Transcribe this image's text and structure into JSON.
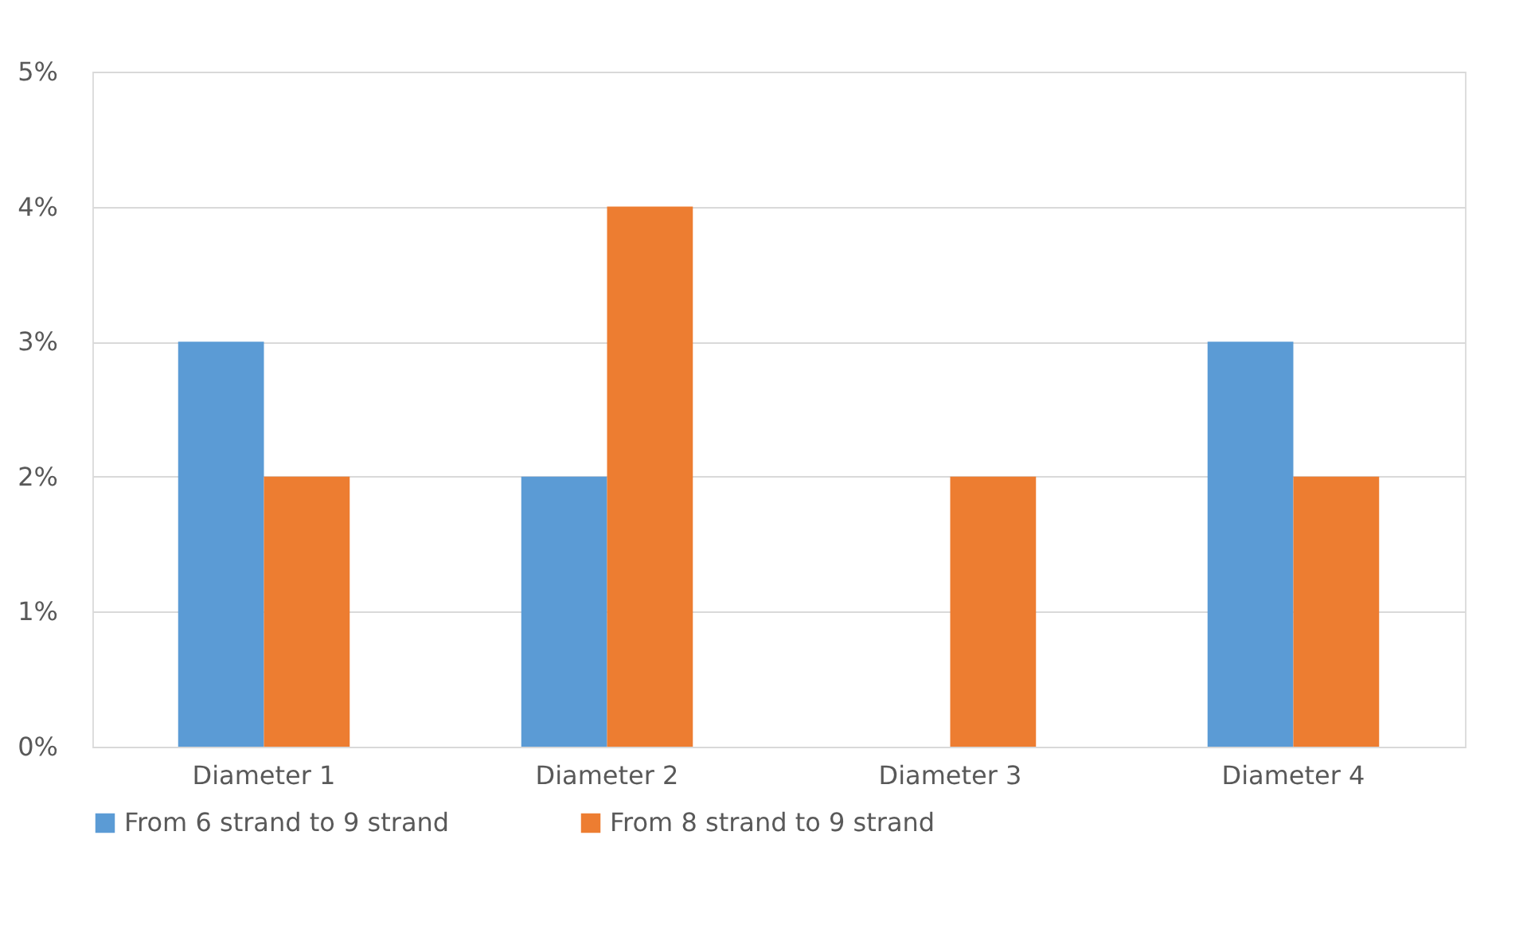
{
  "chart_data": {
    "type": "bar",
    "categories": [
      "Diameter 1",
      "Diameter 2",
      "Diameter 3",
      "Diameter 4"
    ],
    "series": [
      {
        "name": "From 6 strand to 9 strand",
        "color": "#5b9bd5",
        "values": [
          3,
          2,
          0,
          3
        ]
      },
      {
        "name": "From 8 strand to 9 strand",
        "color": "#ed7d31",
        "values": [
          2,
          4,
          2,
          2
        ]
      }
    ],
    "ylim": [
      0,
      5
    ],
    "yticks": [
      {
        "value": 0,
        "label": "0%"
      },
      {
        "value": 1,
        "label": "1%"
      },
      {
        "value": 2,
        "label": "2%"
      },
      {
        "value": 3,
        "label": "3%"
      },
      {
        "value": 4,
        "label": "4%"
      },
      {
        "value": 5,
        "label": "5%"
      }
    ],
    "grid": "y",
    "legend": "bottom"
  }
}
